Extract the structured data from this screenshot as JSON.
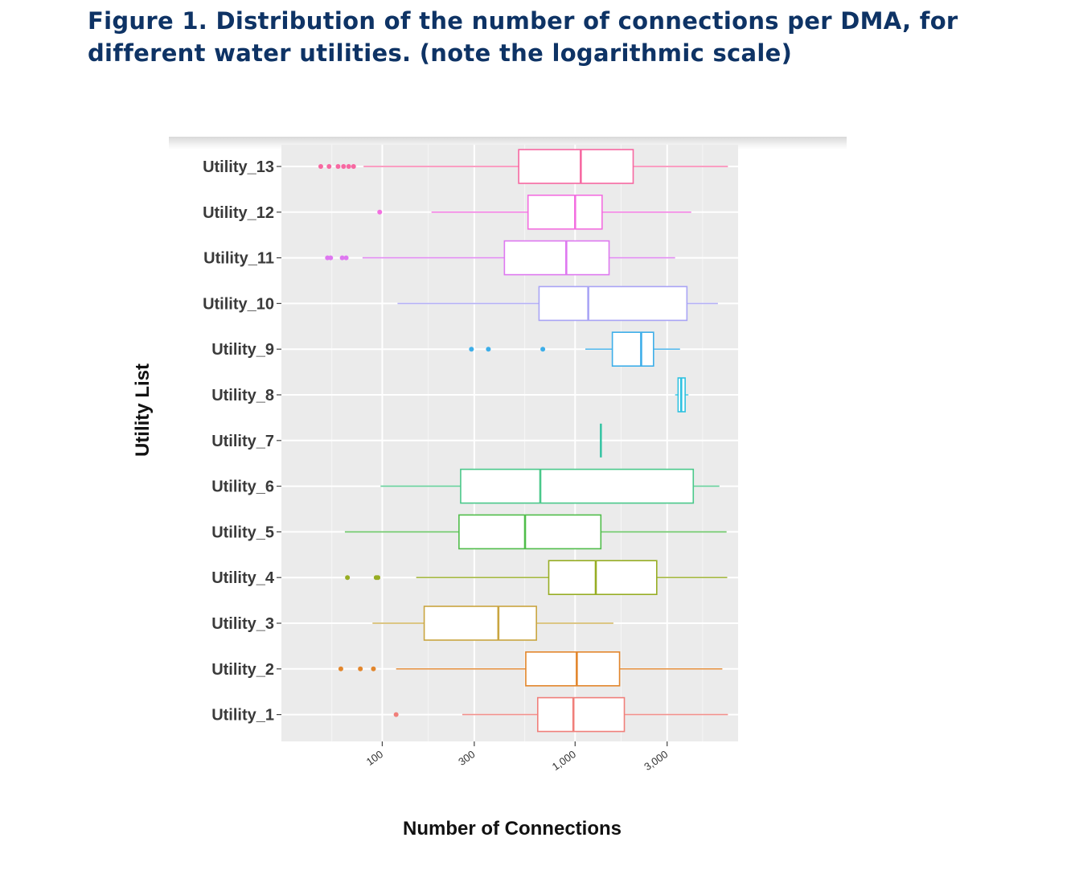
{
  "figure": {
    "title": "Figure 1. Distribution of the number of connections per DMA, for different water utilities. (note the logarithmic scale)"
  },
  "chart_data": {
    "type": "boxplot",
    "orientation": "horizontal",
    "xlabel": "Number of Connections",
    "ylabel": "Utility List",
    "xscale": "log",
    "xlim": [
      30,
      7000
    ],
    "xticks": [
      100,
      300,
      1000,
      3000
    ],
    "xtick_labels": [
      "100",
      "300",
      "1,000",
      "3,000"
    ],
    "grid": true,
    "legend": "none",
    "categories": [
      "Utility_13",
      "Utility_12",
      "Utility_11",
      "Utility_10",
      "Utility_9",
      "Utility_8",
      "Utility_7",
      "Utility_6",
      "Utility_5",
      "Utility_4",
      "Utility_3",
      "Utility_2",
      "Utility_1"
    ],
    "boxes": [
      {
        "name": "Utility_13",
        "color": "#f768a1",
        "whisker_low": 80,
        "q1": 510,
        "median": 1070,
        "q3": 2000,
        "whisker_high": 6200,
        "outliers": [
          48,
          53,
          59,
          63,
          67,
          71
        ]
      },
      {
        "name": "Utility_12",
        "color": "#f36fe0",
        "whisker_low": 180,
        "q1": 570,
        "median": 1000,
        "q3": 1380,
        "whisker_high": 4000,
        "outliers": [
          97
        ]
      },
      {
        "name": "Utility_11",
        "color": "#de78f0",
        "whisker_low": 79,
        "q1": 430,
        "median": 900,
        "q3": 1500,
        "whisker_high": 3300,
        "outliers": [
          52,
          54,
          62,
          65
        ]
      },
      {
        "name": "Utility_10",
        "color": "#a9a4f5",
        "whisker_low": 120,
        "q1": 650,
        "median": 1170,
        "q3": 3800,
        "whisker_high": 5500,
        "outliers": []
      },
      {
        "name": "Utility_9",
        "color": "#3daee9",
        "whisker_low": 1130,
        "q1": 1560,
        "median": 2200,
        "q3": 2550,
        "whisker_high": 3500,
        "outliers": [
          290,
          355,
          680
        ]
      },
      {
        "name": "Utility_8",
        "color": "#2fc1e0",
        "whisker_low": 3300,
        "q1": 3420,
        "median": 3550,
        "q3": 3720,
        "whisker_high": 3870,
        "outliers": []
      },
      {
        "name": "Utility_7",
        "color": "#33c3a2",
        "whisker_low": 1360,
        "q1": 1360,
        "median": 1360,
        "q3": 1360,
        "whisker_high": 1360,
        "outliers": []
      },
      {
        "name": "Utility_6",
        "color": "#4ac88a",
        "whisker_low": 98,
        "q1": 255,
        "median": 660,
        "q3": 4100,
        "whisker_high": 5600,
        "outliers": []
      },
      {
        "name": "Utility_5",
        "color": "#50bd4a",
        "whisker_low": 64,
        "q1": 250,
        "median": 550,
        "q3": 1360,
        "whisker_high": 6100,
        "outliers": []
      },
      {
        "name": "Utility_4",
        "color": "#97ad24",
        "whisker_low": 150,
        "q1": 730,
        "median": 1280,
        "q3": 2650,
        "whisker_high": 6150,
        "outliers": [
          66,
          93,
          95
        ]
      },
      {
        "name": "Utility_3",
        "color": "#c9a540",
        "whisker_low": 89,
        "q1": 165,
        "median": 400,
        "q3": 630,
        "whisker_high": 1580,
        "outliers": []
      },
      {
        "name": "Utility_2",
        "color": "#e2862c",
        "whisker_low": 118,
        "q1": 555,
        "median": 1020,
        "q3": 1700,
        "whisker_high": 5800,
        "outliers": [
          61,
          77,
          90
        ]
      },
      {
        "name": "Utility_1",
        "color": "#f07f7a",
        "whisker_low": 260,
        "q1": 640,
        "median": 980,
        "q3": 1800,
        "whisker_high": 6200,
        "outliers": [
          118
        ]
      }
    ]
  }
}
